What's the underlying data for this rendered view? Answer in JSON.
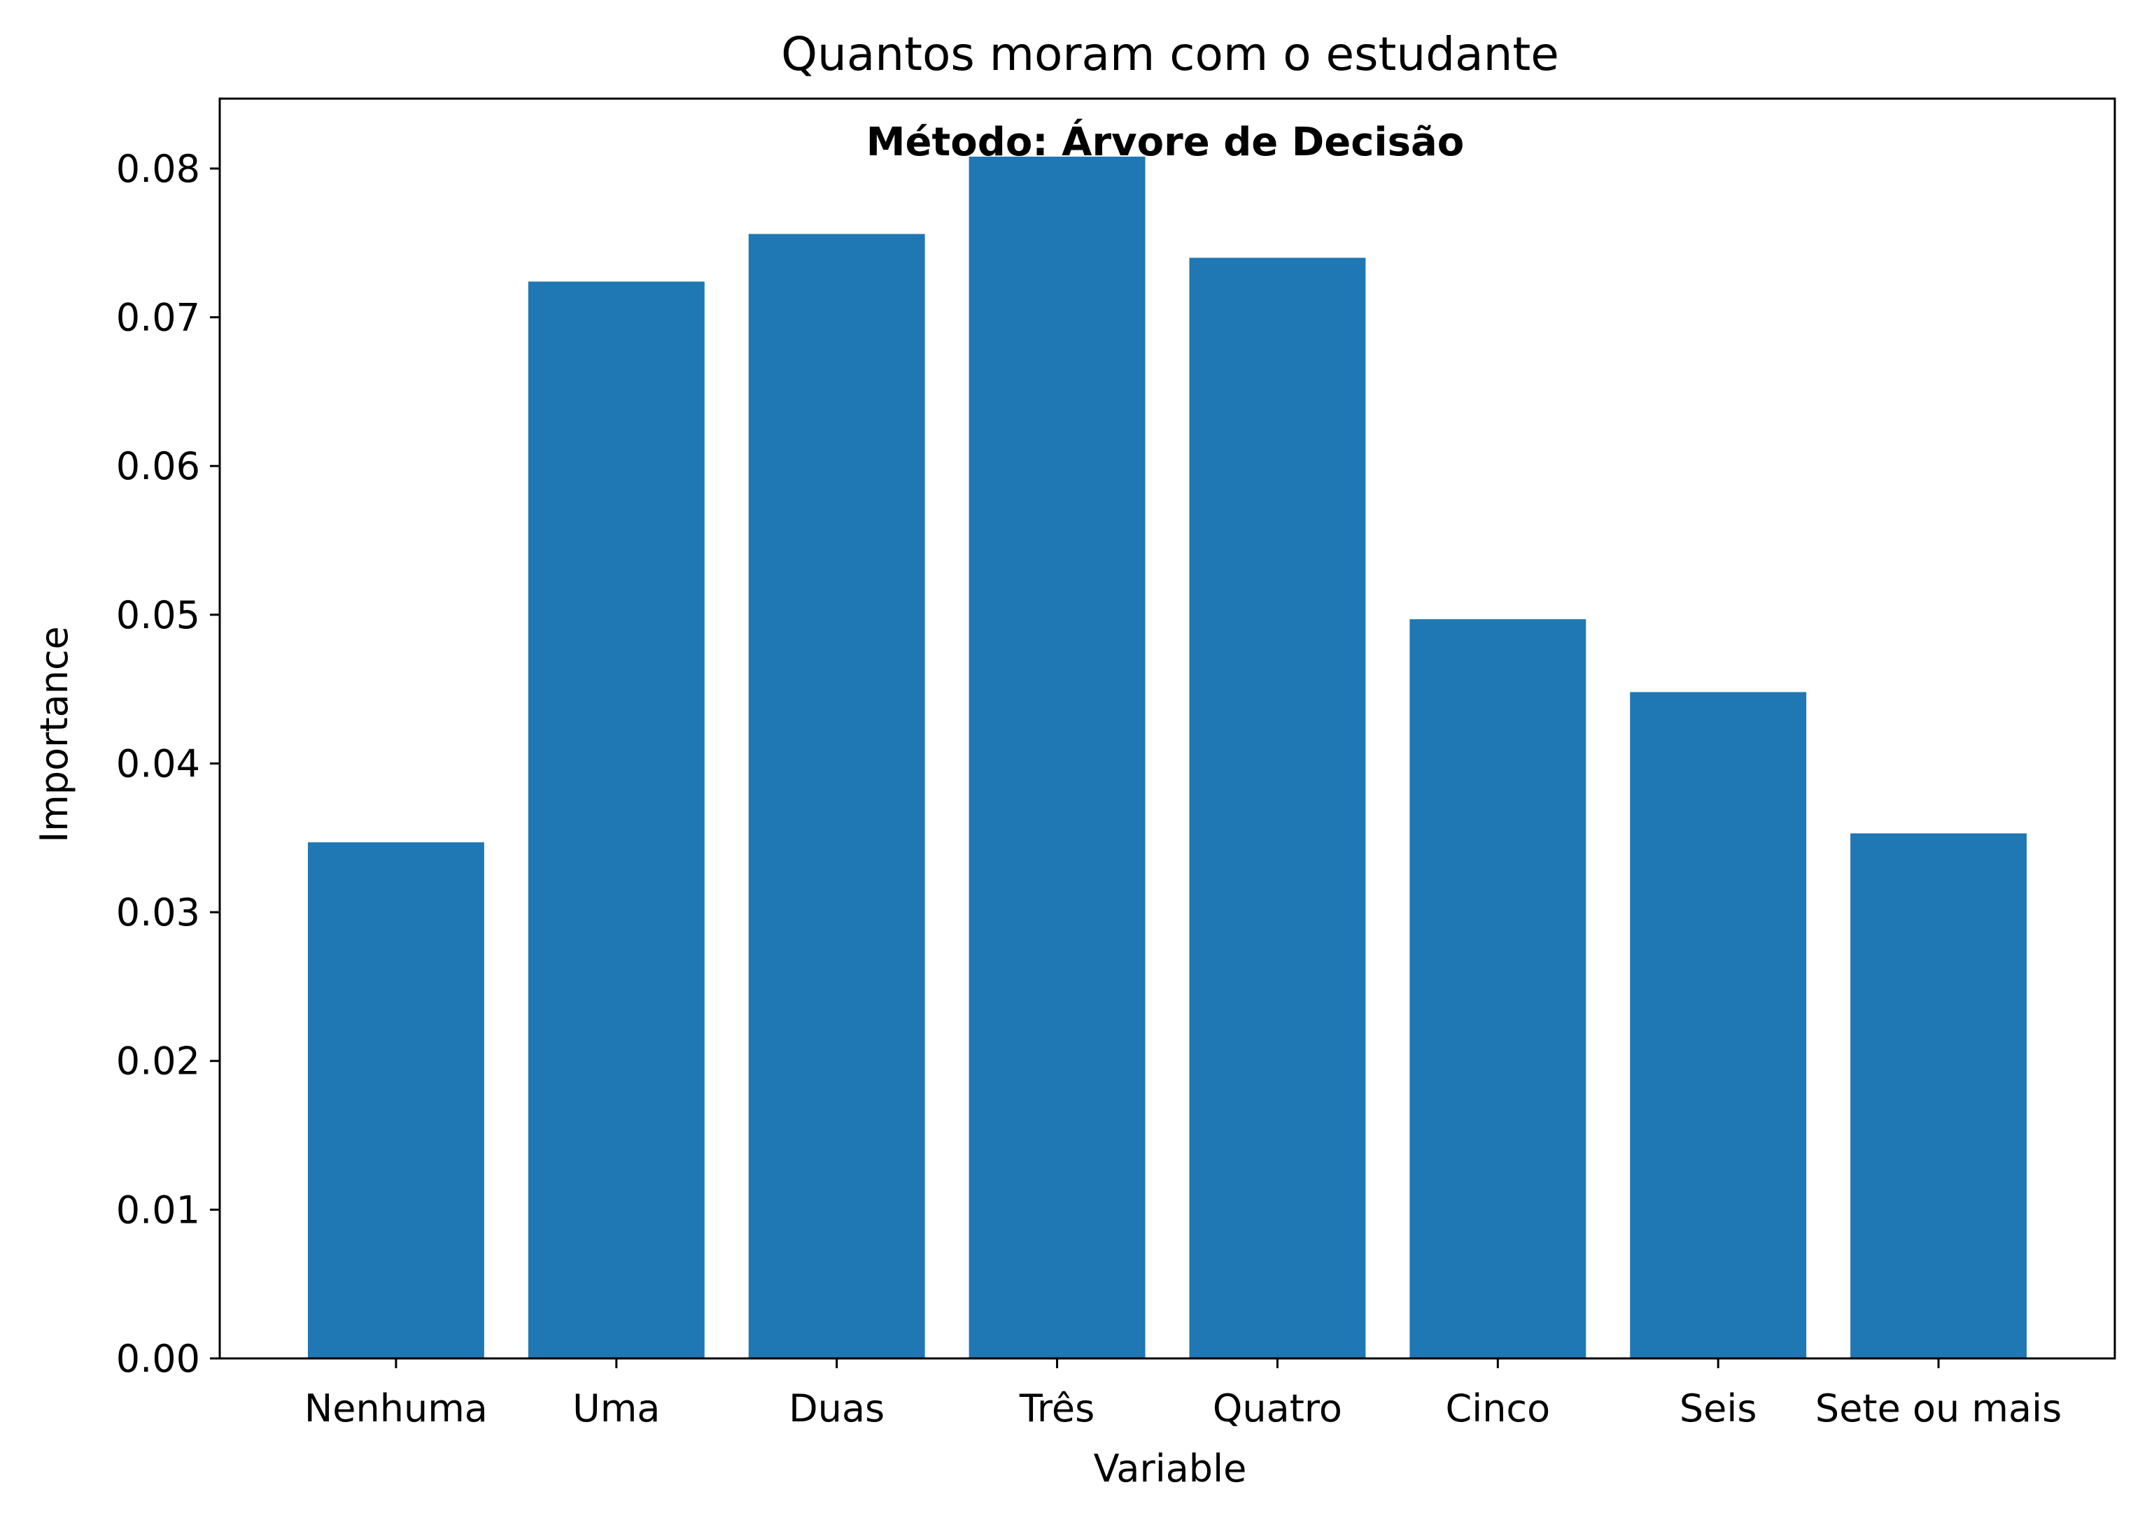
{
  "chart_data": {
    "type": "bar",
    "title": "Quantos moram com o estudante",
    "annotation": "Método: Árvore de Decisão",
    "xlabel": "Variable",
    "ylabel": "Importance",
    "categories": [
      "Nenhuma",
      "Uma",
      "Duas",
      "Três",
      "Quatro",
      "Cinco",
      "Seis",
      "Sete ou mais"
    ],
    "values": [
      0.0347,
      0.0724,
      0.0756,
      0.0808,
      0.074,
      0.0497,
      0.0448,
      0.0353
    ],
    "ylim": [
      0,
      0.0847
    ],
    "yticks": [
      "0.00",
      "0.01",
      "0.02",
      "0.03",
      "0.04",
      "0.05",
      "0.06",
      "0.07",
      "0.08"
    ],
    "bar_color": "#1f77b4",
    "grid": false
  }
}
